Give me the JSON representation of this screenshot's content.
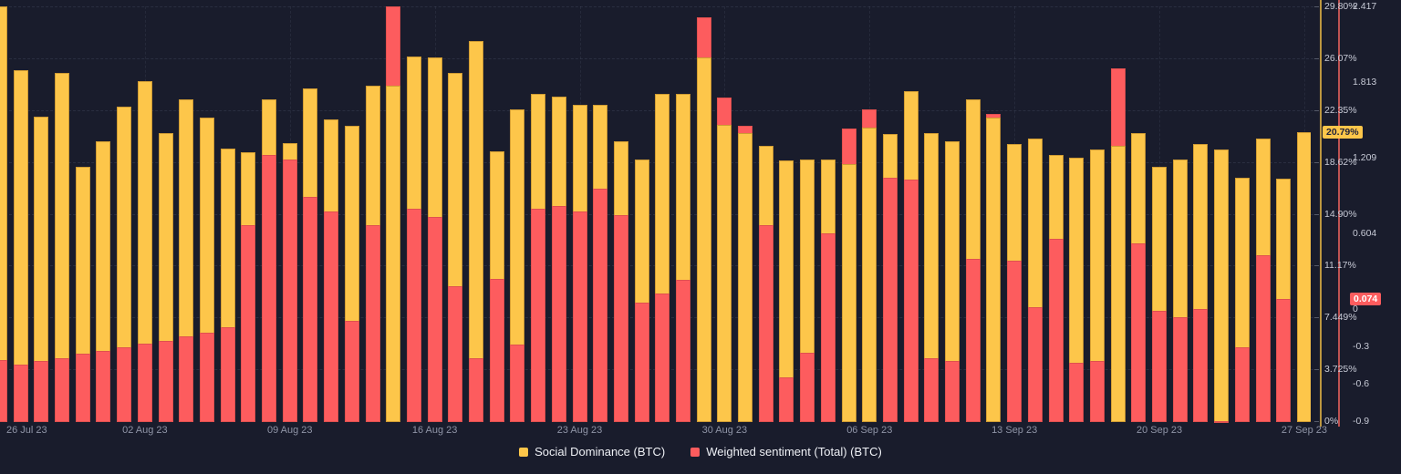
{
  "chart_data": {
    "type": "bar",
    "title": "",
    "dates": [
      "26 Jul 23",
      "27 Jul 23",
      "28 Jul 23",
      "29 Jul 23",
      "30 Jul 23",
      "31 Jul 23",
      "01 Aug 23",
      "02 Aug 23",
      "03 Aug 23",
      "04 Aug 23",
      "05 Aug 23",
      "06 Aug 23",
      "07 Aug 23",
      "08 Aug 23",
      "09 Aug 23",
      "10 Aug 23",
      "11 Aug 23",
      "12 Aug 23",
      "13 Aug 23",
      "14 Aug 23",
      "15 Aug 23",
      "16 Aug 23",
      "17 Aug 23",
      "18 Aug 23",
      "19 Aug 23",
      "20 Aug 23",
      "21 Aug 23",
      "22 Aug 23",
      "23 Aug 23",
      "24 Aug 23",
      "25 Aug 23",
      "26 Aug 23",
      "27 Aug 23",
      "28 Aug 23",
      "29 Aug 23",
      "30 Aug 23",
      "31 Aug 23",
      "01 Sep 23",
      "02 Sep 23",
      "03 Sep 23",
      "04 Sep 23",
      "05 Sep 23",
      "06 Sep 23",
      "07 Sep 23",
      "08 Sep 23",
      "09 Sep 23",
      "10 Sep 23",
      "11 Sep 23",
      "12 Sep 23",
      "13 Sep 23",
      "14 Sep 23",
      "15 Sep 23",
      "16 Sep 23",
      "17 Sep 23",
      "18 Sep 23",
      "19 Sep 23",
      "20 Sep 23",
      "21 Sep 23",
      "22 Sep 23",
      "23 Sep 23",
      "24 Sep 23",
      "25 Sep 23",
      "26 Sep 23",
      "27 Sep 23"
    ],
    "series": [
      {
        "name": "Social Dominance (BTC)",
        "axis": "percent",
        "color": "#fdc64a",
        "values": [
          29.8,
          25.2,
          21.9,
          25.0,
          18.3,
          20.1,
          22.6,
          24.4,
          20.7,
          23.1,
          21.8,
          19.6,
          19.3,
          23.1,
          20.0,
          23.9,
          21.7,
          21.2,
          24.1,
          24.1,
          26.2,
          26.1,
          25.0,
          27.3,
          19.4,
          22.4,
          23.5,
          23.3,
          22.7,
          22.7,
          20.1,
          18.8,
          23.5,
          23.5,
          26.1,
          21.3,
          20.7,
          19.8,
          18.7,
          18.8,
          18.8,
          18.5,
          21.1,
          20.6,
          23.7,
          20.7,
          20.1,
          23.1,
          21.8,
          19.9,
          20.3,
          19.1,
          18.9,
          19.5,
          19.8,
          20.7,
          18.3,
          18.8,
          19.9,
          19.5,
          17.5,
          20.3,
          17.4,
          20.79
        ]
      },
      {
        "name": "Weighted sentiment (Total) (BTC)",
        "axis": "sentiment",
        "color": "#fd5c5e",
        "values": [
          -0.41,
          -0.45,
          -0.42,
          -0.4,
          -0.36,
          -0.34,
          -0.31,
          -0.28,
          -0.26,
          -0.22,
          -0.19,
          -0.15,
          0.67,
          1.23,
          1.19,
          0.89,
          0.78,
          -0.1,
          0.67,
          2.417,
          0.8,
          0.73,
          0.18,
          -0.4,
          0.24,
          -0.29,
          0.8,
          0.82,
          0.78,
          0.96,
          0.75,
          0.05,
          0.12,
          0.23,
          2.33,
          1.69,
          1.46,
          0.67,
          -0.55,
          -0.35,
          0.6,
          1.44,
          1.59,
          1.05,
          1.03,
          -0.4,
          -0.42,
          0.4,
          1.56,
          0.38,
          0.01,
          0.56,
          -0.43,
          -0.42,
          1.92,
          0.52,
          -0.02,
          -0.07,
          0.0,
          -0.9,
          -0.31,
          0.43,
          0.074,
          null
        ]
      }
    ],
    "x_axis": {
      "tick_indices": [
        0,
        7,
        14,
        21,
        28,
        35,
        42,
        49,
        56,
        63
      ],
      "tick_labels": [
        "26 Jul 23",
        "02 Aug 23",
        "09 Aug 23",
        "16 Aug 23",
        "23 Aug 23",
        "30 Aug 23",
        "06 Sep 23",
        "13 Sep 23",
        "20 Sep 23",
        "27 Sep 23"
      ]
    },
    "y_axis_percent": {
      "side": "right-inner",
      "range": [
        0,
        29.8
      ],
      "tick_labels": [
        "29.80%",
        "26.07%",
        "22.35%",
        "18.62%",
        "14.90%",
        "11.17%",
        "7.449%",
        "3.725%",
        "0%"
      ],
      "tick_values": [
        29.8,
        26.07,
        22.35,
        18.62,
        14.9,
        11.17,
        7.449,
        3.725,
        0
      ],
      "current_badge": "20.79%",
      "current_value": 20.79
    },
    "y_axis_sentiment": {
      "side": "right-outer",
      "range": [
        -0.9,
        2.417
      ],
      "tick_labels": [
        "2.417",
        "1.813",
        "1.209",
        "0.604",
        "0",
        "-0.3",
        "-0.6",
        "-0.9"
      ],
      "tick_values": [
        2.417,
        1.813,
        1.209,
        0.604,
        0,
        -0.3,
        -0.6,
        -0.9
      ],
      "current_badge": "0.074",
      "current_value": 0.074
    },
    "legend": [
      "Social Dominance (BTC)",
      "Weighted sentiment (Total) (BTC)"
    ],
    "grid": "dashed horizontal at percent ticks, dashed vertical weekly"
  },
  "colors": {
    "background": "#191c2c",
    "social_dominance": "#fdc64a",
    "weighted_sentiment": "#fd5c5e",
    "percent_axis_line": "#bc9740",
    "sentiment_axis_line": "#bd5352",
    "tick_text": "#c7cad6",
    "date_text": "#8f94a6",
    "legend_text": "#eef0f5"
  }
}
